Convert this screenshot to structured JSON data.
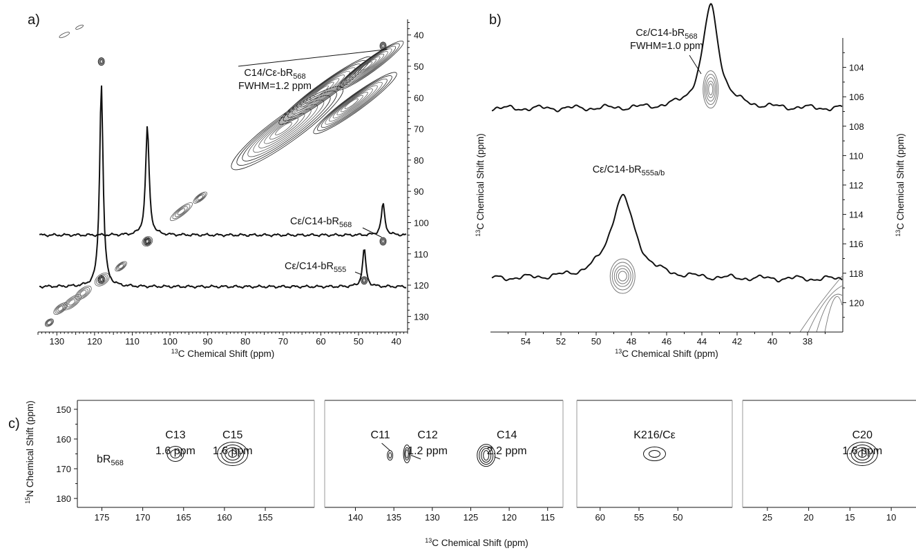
{
  "chart_data": [
    {
      "type": "contour",
      "panel_label": "a)",
      "xlabel": "13C Chemical Shift (ppm)",
      "ylabel": "",
      "xlim": [
        135,
        37
      ],
      "ylim": [
        35,
        135
      ],
      "xticks": [
        130,
        120,
        110,
        100,
        90,
        80,
        70,
        60,
        50,
        40
      ],
      "yticks": [
        40,
        50,
        60,
        70,
        80,
        90,
        100,
        110,
        120,
        130
      ],
      "annotations": [
        {
          "line1": "C14/Cε-bR",
          "sub1": "568",
          "line2": "FWHM=1.2 ppm",
          "x": 43.5,
          "y": 43.5
        },
        {
          "line1": "Cε/C14-bR",
          "sub1": "568",
          "x": 43.5,
          "y": 106
        },
        {
          "line1": "Cε/C14-bR",
          "sub1": "555",
          "x": 48.5,
          "y": 118.5
        }
      ],
      "slices": [
        {
          "baseline_ppm": 104,
          "peaks": [
            {
              "x": 106,
              "height_ppm": 35
            },
            {
              "x": 43.5,
              "height_ppm": 10
            }
          ]
        },
        {
          "baseline_ppm": 120.5,
          "peaks": [
            {
              "x": 118.2,
              "height_ppm": 65
            },
            {
              "x": 48.5,
              "height_ppm": 12
            }
          ]
        }
      ],
      "cross_peaks": [
        {
          "x": 118.2,
          "y": 48.5
        },
        {
          "x": 43.5,
          "y": 43.5
        },
        {
          "x": 106,
          "y": 106
        },
        {
          "x": 118.2,
          "y": 118.2
        },
        {
          "x": 43.5,
          "y": 106
        },
        {
          "x": 48.5,
          "y": 118.5
        }
      ]
    },
    {
      "type": "contour",
      "panel_label": "b)",
      "xlabel": "13C Chemical Shift (ppm)",
      "ylabel": "13C Chemical Shift (ppm)",
      "xlim": [
        56,
        36
      ],
      "ylim": [
        102,
        122
      ],
      "xticks": [
        54,
        52,
        50,
        48,
        46,
        44,
        42,
        40,
        38
      ],
      "yticks": [
        104,
        106,
        108,
        110,
        112,
        114,
        116,
        118,
        120
      ],
      "annotations": [
        {
          "line1": "Cε/C14-bR",
          "sub1": "568",
          "line2": "FWHM=1.0 ppm"
        },
        {
          "line1": "Cε/C14-bR",
          "sub1": "555a/b"
        }
      ],
      "slices": [
        {
          "baseline_ppm": 106.8,
          "peaks": [
            {
              "x": 43.5,
              "height_ppm": 7
            }
          ]
        },
        {
          "baseline_ppm": 118.4,
          "peaks": [
            {
              "x": 48.5,
              "height_ppm": 5.6
            }
          ]
        }
      ],
      "cross_peaks": [
        {
          "x": 43.5,
          "y": 105.5
        },
        {
          "x": 48.5,
          "y": 118.2
        }
      ]
    },
    {
      "type": "contour",
      "panel_label": "c)",
      "xlabel": "13C Chemical Shift (ppm)",
      "ylabel": "15N Chemical Shift (ppm)",
      "ylim": [
        147,
        183
      ],
      "yticks": [
        150,
        160,
        170,
        180
      ],
      "series_label": {
        "main": "bR",
        "sub": "568"
      },
      "subpanels": [
        {
          "xlim": [
            178,
            149
          ],
          "xticks": [
            175,
            170,
            165,
            160,
            155
          ],
          "peaks": [
            {
              "name": "C13",
              "fwhm": "1.6 ppm",
              "x": 166,
              "y": 165
            },
            {
              "name": "C15",
              "fwhm": "1.6 ppm",
              "x": 159,
              "y": 165
            }
          ]
        },
        {
          "xlim": [
            144,
            113
          ],
          "xticks": [
            140,
            135,
            130,
            125,
            120,
            115
          ],
          "peaks": [
            {
              "name": "C11",
              "fwhm": "",
              "x": 135.5,
              "y": 165.5
            },
            {
              "name": "C12",
              "fwhm": "1.2 ppm",
              "x": 133.3,
              "y": 165
            },
            {
              "name": "C14",
              "fwhm": "2.2 ppm",
              "x": 123,
              "y": 165.5
            }
          ]
        },
        {
          "xlim": [
            63,
            43
          ],
          "xticks": [
            60,
            55,
            50
          ],
          "peaks": [
            {
              "name": "K216/Cε",
              "fwhm": "",
              "x": 53,
              "y": 165
            }
          ]
        },
        {
          "xlim": [
            28,
            7
          ],
          "xticks": [
            25,
            20,
            15,
            10
          ],
          "peaks": [
            {
              "name": "C20",
              "fwhm": "1.6 ppm",
              "x": 13.5,
              "y": 165
            }
          ]
        }
      ]
    }
  ]
}
